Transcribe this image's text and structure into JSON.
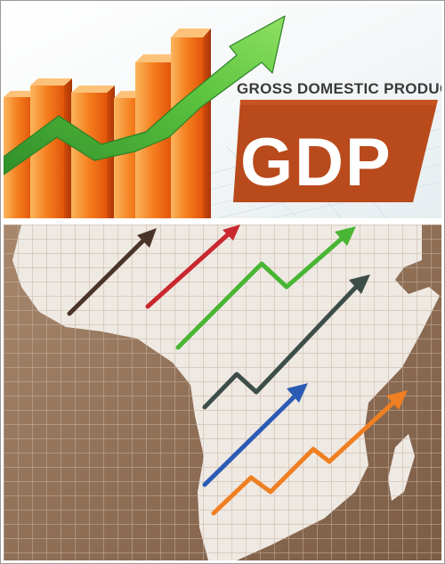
{
  "banner": {
    "subtitle": "GROSS DOMESTIC PRODUCT",
    "title": "GDP"
  },
  "colors": {
    "bar_orange": "#ef6a12",
    "bar_light": "#fbb55d",
    "growth_arrow": "#4fb33a",
    "badge": "#b94a1c",
    "map_land": "#efe9e3",
    "map_background": "#8f6f56",
    "grid_line": "#c7b4a3"
  },
  "arrows": [
    {
      "name": "dark-brown-arrow",
      "color": "#4a3429"
    },
    {
      "name": "red-arrow",
      "color": "#c8282e"
    },
    {
      "name": "green-zigzag-arrow",
      "color": "#49b635"
    },
    {
      "name": "dark-teal-zigzag-arrow",
      "color": "#3d4d48"
    },
    {
      "name": "blue-arrow",
      "color": "#2c5bb5"
    },
    {
      "name": "orange-zigzag-arrow",
      "color": "#ef7f22"
    }
  ]
}
